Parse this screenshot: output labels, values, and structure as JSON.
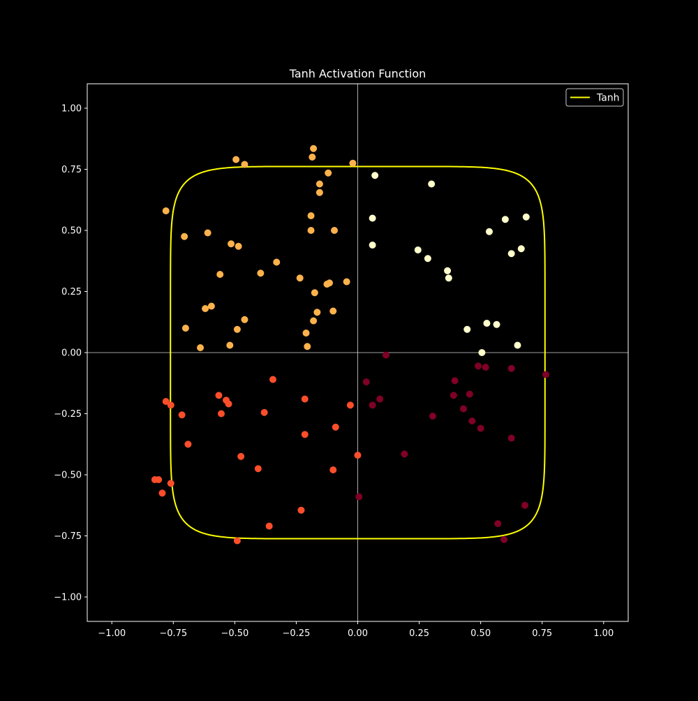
{
  "chart_data": {
    "type": "scatter",
    "title": "Tanh Activation Function",
    "xlabel": "",
    "ylabel": "",
    "xlim": [
      -1.1,
      1.1
    ],
    "ylim": [
      -1.1,
      1.1
    ],
    "xticks": [
      -1.0,
      -0.75,
      -0.5,
      -0.25,
      0.0,
      0.25,
      0.5,
      0.75,
      1.0
    ],
    "xtick_labels": [
      "−1.00",
      "−0.75",
      "−0.50",
      "−0.25",
      "0.00",
      "0.25",
      "0.50",
      "0.75",
      "1.00"
    ],
    "yticks": [
      1.0,
      0.75,
      0.5,
      0.25,
      0.0,
      -0.25,
      -0.5,
      -0.75,
      -1.0
    ],
    "ytick_labels": [
      "1.00",
      "0.75",
      "0.50",
      "0.25",
      "0.00",
      "−0.25",
      "−0.50",
      "−0.75",
      "−1.00"
    ],
    "grid": false,
    "reference_lines": {
      "x": 0,
      "y": 0,
      "color": "#d9d9d9"
    },
    "legend": {
      "position": "top-right",
      "entries": [
        {
          "label": "Tanh",
          "color": "#ffff00",
          "marker": "line"
        }
      ]
    },
    "curve": {
      "name": "Tanh",
      "color": "#ffff00",
      "description_values": {
        "radius": 0.7616,
        "exponent": 8
      }
    },
    "colors": {
      "background": "#000000",
      "axes": "#ffffff",
      "text": "#ffffff",
      "q1": "#ffffcc",
      "q2": "#feb24c",
      "q3": "#fc4e2a",
      "q4": "#800026"
    },
    "points": [
      {
        "x": 0.07,
        "y": 0.725,
        "color": "#ffffcc"
      },
      {
        "x": 0.3,
        "y": 0.69,
        "color": "#ffffcc"
      },
      {
        "x": 0.06,
        "y": 0.55,
        "color": "#ffffcc"
      },
      {
        "x": 0.06,
        "y": 0.44,
        "color": "#ffffcc"
      },
      {
        "x": 0.245,
        "y": 0.42,
        "color": "#ffffcc"
      },
      {
        "x": 0.285,
        "y": 0.385,
        "color": "#ffffcc"
      },
      {
        "x": 0.365,
        "y": 0.335,
        "color": "#ffffcc"
      },
      {
        "x": 0.37,
        "y": 0.305,
        "color": "#ffffcc"
      },
      {
        "x": 0.535,
        "y": 0.495,
        "color": "#ffffcc"
      },
      {
        "x": 0.6,
        "y": 0.545,
        "color": "#ffffcc"
      },
      {
        "x": 0.685,
        "y": 0.555,
        "color": "#ffffcc"
      },
      {
        "x": 0.625,
        "y": 0.405,
        "color": "#ffffcc"
      },
      {
        "x": 0.665,
        "y": 0.425,
        "color": "#ffffcc"
      },
      {
        "x": 0.445,
        "y": 0.095,
        "color": "#ffffcc"
      },
      {
        "x": 0.525,
        "y": 0.12,
        "color": "#ffffcc"
      },
      {
        "x": 0.565,
        "y": 0.115,
        "color": "#ffffcc"
      },
      {
        "x": 0.65,
        "y": 0.03,
        "color": "#ffffcc"
      },
      {
        "x": 0.505,
        "y": 0.0,
        "color": "#ffffcc"
      },
      {
        "x": -0.18,
        "y": 0.835,
        "color": "#feb24c"
      },
      {
        "x": -0.185,
        "y": 0.8,
        "color": "#feb24c"
      },
      {
        "x": -0.495,
        "y": 0.79,
        "color": "#feb24c"
      },
      {
        "x": -0.46,
        "y": 0.77,
        "color": "#feb24c"
      },
      {
        "x": -0.02,
        "y": 0.775,
        "color": "#feb24c"
      },
      {
        "x": -0.12,
        "y": 0.735,
        "color": "#feb24c"
      },
      {
        "x": -0.155,
        "y": 0.69,
        "color": "#feb24c"
      },
      {
        "x": -0.155,
        "y": 0.655,
        "color": "#feb24c"
      },
      {
        "x": -0.78,
        "y": 0.58,
        "color": "#feb24c"
      },
      {
        "x": -0.705,
        "y": 0.475,
        "color": "#feb24c"
      },
      {
        "x": -0.61,
        "y": 0.49,
        "color": "#feb24c"
      },
      {
        "x": -0.19,
        "y": 0.56,
        "color": "#feb24c"
      },
      {
        "x": -0.19,
        "y": 0.5,
        "color": "#feb24c"
      },
      {
        "x": -0.095,
        "y": 0.5,
        "color": "#feb24c"
      },
      {
        "x": -0.515,
        "y": 0.445,
        "color": "#feb24c"
      },
      {
        "x": -0.485,
        "y": 0.435,
        "color": "#feb24c"
      },
      {
        "x": -0.33,
        "y": 0.37,
        "color": "#feb24c"
      },
      {
        "x": -0.395,
        "y": 0.325,
        "color": "#feb24c"
      },
      {
        "x": -0.56,
        "y": 0.32,
        "color": "#feb24c"
      },
      {
        "x": -0.235,
        "y": 0.305,
        "color": "#feb24c"
      },
      {
        "x": -0.125,
        "y": 0.28,
        "color": "#feb24c"
      },
      {
        "x": -0.115,
        "y": 0.285,
        "color": "#feb24c"
      },
      {
        "x": -0.045,
        "y": 0.29,
        "color": "#feb24c"
      },
      {
        "x": -0.175,
        "y": 0.245,
        "color": "#feb24c"
      },
      {
        "x": -0.595,
        "y": 0.19,
        "color": "#feb24c"
      },
      {
        "x": -0.62,
        "y": 0.18,
        "color": "#feb24c"
      },
      {
        "x": -0.165,
        "y": 0.165,
        "color": "#feb24c"
      },
      {
        "x": -0.1,
        "y": 0.17,
        "color": "#feb24c"
      },
      {
        "x": -0.46,
        "y": 0.135,
        "color": "#feb24c"
      },
      {
        "x": -0.18,
        "y": 0.13,
        "color": "#feb24c"
      },
      {
        "x": -0.7,
        "y": 0.1,
        "color": "#feb24c"
      },
      {
        "x": -0.49,
        "y": 0.095,
        "color": "#feb24c"
      },
      {
        "x": -0.21,
        "y": 0.08,
        "color": "#feb24c"
      },
      {
        "x": -0.52,
        "y": 0.03,
        "color": "#feb24c"
      },
      {
        "x": -0.64,
        "y": 0.02,
        "color": "#feb24c"
      },
      {
        "x": -0.205,
        "y": 0.025,
        "color": "#feb24c"
      },
      {
        "x": -0.345,
        "y": -0.11,
        "color": "#fc4e2a"
      },
      {
        "x": -0.565,
        "y": -0.175,
        "color": "#fc4e2a"
      },
      {
        "x": -0.535,
        "y": -0.195,
        "color": "#fc4e2a"
      },
      {
        "x": -0.525,
        "y": -0.21,
        "color": "#fc4e2a"
      },
      {
        "x": -0.215,
        "y": -0.19,
        "color": "#fc4e2a"
      },
      {
        "x": -0.78,
        "y": -0.2,
        "color": "#fc4e2a"
      },
      {
        "x": -0.76,
        "y": -0.215,
        "color": "#fc4e2a"
      },
      {
        "x": -0.03,
        "y": -0.215,
        "color": "#fc4e2a"
      },
      {
        "x": -0.38,
        "y": -0.245,
        "color": "#fc4e2a"
      },
      {
        "x": -0.555,
        "y": -0.25,
        "color": "#fc4e2a"
      },
      {
        "x": -0.715,
        "y": -0.255,
        "color": "#fc4e2a"
      },
      {
        "x": -0.09,
        "y": -0.305,
        "color": "#fc4e2a"
      },
      {
        "x": -0.215,
        "y": -0.335,
        "color": "#fc4e2a"
      },
      {
        "x": -0.69,
        "y": -0.375,
        "color": "#fc4e2a"
      },
      {
        "x": 0.0,
        "y": -0.42,
        "color": "#fc4e2a"
      },
      {
        "x": -0.475,
        "y": -0.425,
        "color": "#fc4e2a"
      },
      {
        "x": -0.405,
        "y": -0.475,
        "color": "#fc4e2a"
      },
      {
        "x": -0.1,
        "y": -0.48,
        "color": "#fc4e2a"
      },
      {
        "x": -0.825,
        "y": -0.52,
        "color": "#fc4e2a"
      },
      {
        "x": -0.81,
        "y": -0.52,
        "color": "#fc4e2a"
      },
      {
        "x": -0.76,
        "y": -0.535,
        "color": "#fc4e2a"
      },
      {
        "x": -0.795,
        "y": -0.575,
        "color": "#fc4e2a"
      },
      {
        "x": -0.23,
        "y": -0.645,
        "color": "#fc4e2a"
      },
      {
        "x": -0.36,
        "y": -0.71,
        "color": "#fc4e2a"
      },
      {
        "x": -0.49,
        "y": -0.77,
        "color": "#fc4e2a"
      },
      {
        "x": 0.115,
        "y": -0.01,
        "color": "#800026"
      },
      {
        "x": 0.49,
        "y": -0.055,
        "color": "#800026"
      },
      {
        "x": 0.52,
        "y": -0.06,
        "color": "#800026"
      },
      {
        "x": 0.625,
        "y": -0.065,
        "color": "#800026"
      },
      {
        "x": 0.765,
        "y": -0.09,
        "color": "#800026"
      },
      {
        "x": 0.035,
        "y": -0.12,
        "color": "#800026"
      },
      {
        "x": 0.395,
        "y": -0.115,
        "color": "#800026"
      },
      {
        "x": 0.455,
        "y": -0.17,
        "color": "#800026"
      },
      {
        "x": 0.39,
        "y": -0.175,
        "color": "#800026"
      },
      {
        "x": 0.09,
        "y": -0.19,
        "color": "#800026"
      },
      {
        "x": 0.06,
        "y": -0.215,
        "color": "#800026"
      },
      {
        "x": 0.43,
        "y": -0.23,
        "color": "#800026"
      },
      {
        "x": 0.305,
        "y": -0.26,
        "color": "#800026"
      },
      {
        "x": 0.465,
        "y": -0.28,
        "color": "#800026"
      },
      {
        "x": 0.5,
        "y": -0.31,
        "color": "#800026"
      },
      {
        "x": 0.625,
        "y": -0.35,
        "color": "#800026"
      },
      {
        "x": 0.19,
        "y": -0.415,
        "color": "#800026"
      },
      {
        "x": 0.005,
        "y": -0.59,
        "color": "#800026"
      },
      {
        "x": 0.68,
        "y": -0.625,
        "color": "#800026"
      },
      {
        "x": 0.57,
        "y": -0.7,
        "color": "#800026"
      },
      {
        "x": 0.595,
        "y": -0.765,
        "color": "#800026"
      }
    ]
  }
}
